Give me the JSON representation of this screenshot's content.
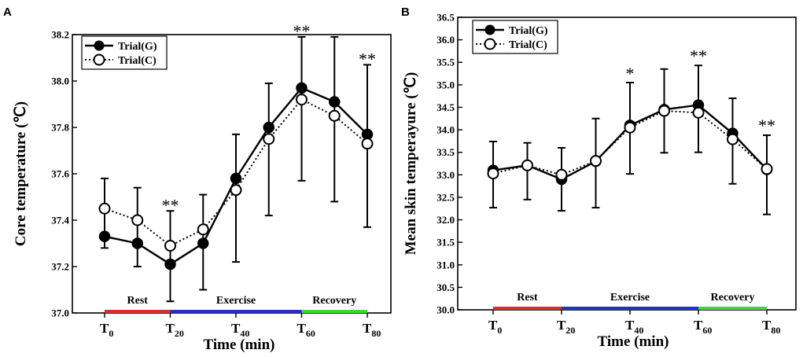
{
  "chart_data": [
    {
      "panel": "A",
      "type": "line",
      "xlabel": "Time (min)",
      "ylabel": "Core temperature (℃)",
      "ylim": [
        37.0,
        38.2
      ],
      "yticks": [
        "37.0",
        "37.2",
        "37.4",
        "37.6",
        "37.8",
        "38.0",
        "38.2"
      ],
      "x": [
        0,
        10,
        20,
        30,
        40,
        50,
        60,
        70,
        80
      ],
      "xticks": [
        {
          "value": 0,
          "base": "T",
          "sub": "0"
        },
        {
          "value": 20,
          "base": "T",
          "sub": "20"
        },
        {
          "value": 40,
          "base": "T",
          "sub": "40"
        },
        {
          "value": 60,
          "base": "T",
          "sub": "60"
        },
        {
          "value": 80,
          "base": "T",
          "sub": "80"
        }
      ],
      "series": [
        {
          "name": "Trial(G)",
          "style": "solid-filled",
          "values": [
            37.33,
            37.3,
            37.21,
            37.3,
            37.58,
            37.8,
            37.97,
            37.91,
            37.77
          ],
          "error_low": [
            37.28,
            37.2,
            37.05,
            37.1,
            37.22,
            37.42,
            37.57,
            37.48,
            37.37
          ],
          "error_high": [
            37.58,
            37.54,
            37.44,
            37.51,
            37.77,
            37.99,
            38.19,
            38.19,
            38.07
          ]
        },
        {
          "name": "Trial(C)",
          "style": "dotted-open",
          "values": [
            37.45,
            37.4,
            37.29,
            37.36,
            37.53,
            37.75,
            37.92,
            37.85,
            37.73
          ]
        }
      ],
      "phases": [
        {
          "label": "Rest",
          "from": 0,
          "to": 20,
          "color": "#d92e2e"
        },
        {
          "label": "Exercise",
          "from": 20,
          "to": 60,
          "color": "#2430c8"
        },
        {
          "label": "Recovery",
          "from": 60,
          "to": 80,
          "color": "#3fd63f"
        }
      ],
      "significance": [
        {
          "x": 20,
          "label": "**",
          "y": 37.48
        },
        {
          "x": 60,
          "label": "**",
          "y": 38.23
        },
        {
          "x": 80,
          "label": "**",
          "y": 38.11
        }
      ],
      "legend": "top-left"
    },
    {
      "panel": "B",
      "type": "line",
      "xlabel": "Time (min)",
      "ylabel": "Mean skin temperayure (℃)",
      "ylim": [
        30.0,
        36.5
      ],
      "yticks": [
        "30.0",
        "30.5",
        "31.0",
        "31.5",
        "32.0",
        "32.5",
        "33.0",
        "33.5",
        "34.0",
        "34.5",
        "35.0",
        "35.5",
        "36.0",
        "36.5"
      ],
      "x": [
        0,
        10,
        20,
        30,
        40,
        50,
        60,
        70,
        80
      ],
      "xticks": [
        {
          "value": 0,
          "base": "T",
          "sub": "0"
        },
        {
          "value": 20,
          "base": "T",
          "sub": "20"
        },
        {
          "value": 40,
          "base": "T",
          "sub": "40"
        },
        {
          "value": 60,
          "base": "T",
          "sub": "60"
        },
        {
          "value": 80,
          "base": "T",
          "sub": "80"
        }
      ],
      "series": [
        {
          "name": "Trial(G)",
          "style": "solid-filled",
          "values": [
            33.1,
            33.21,
            32.9,
            33.3,
            34.1,
            34.45,
            34.55,
            33.92,
            33.12
          ],
          "error_low": [
            32.27,
            32.45,
            32.2,
            32.27,
            33.02,
            33.49,
            33.5,
            32.8,
            32.12
          ],
          "error_high": [
            33.74,
            33.71,
            33.6,
            34.25,
            35.05,
            35.35,
            35.43,
            34.7,
            33.88
          ]
        },
        {
          "name": "Trial(C)",
          "style": "dotted-open",
          "values": [
            33.03,
            33.21,
            33.0,
            33.31,
            34.05,
            34.42,
            34.38,
            33.79,
            33.13
          ]
        }
      ],
      "phases": [
        {
          "label": "Rest",
          "from": 0,
          "to": 20,
          "color": "#d92e2e"
        },
        {
          "label": "Exercise",
          "from": 20,
          "to": 60,
          "color": "#2430c8"
        },
        {
          "label": "Recovery",
          "from": 60,
          "to": 80,
          "color": "#3fd63f"
        }
      ],
      "significance": [
        {
          "x": 40,
          "label": "*",
          "y": 35.33
        },
        {
          "x": 60,
          "label": "**",
          "y": 35.72
        },
        {
          "x": 80,
          "label": "**",
          "y": 34.18
        }
      ],
      "legend": "top-left"
    }
  ]
}
